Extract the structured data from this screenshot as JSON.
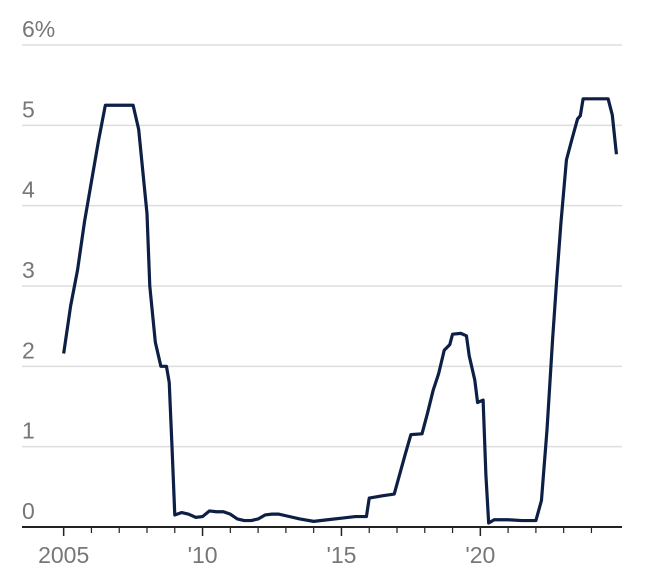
{
  "chart_data": {
    "type": "line",
    "x": [
      2005.0,
      2005.25,
      2005.5,
      2005.75,
      2006.0,
      2006.25,
      2006.5,
      2006.75,
      2007.0,
      2007.5,
      2007.7,
      2008.0,
      2008.1,
      2008.3,
      2008.5,
      2008.7,
      2008.8,
      2008.9,
      2009.0,
      2009.25,
      2009.5,
      2009.75,
      2010.0,
      2010.25,
      2010.5,
      2010.75,
      2011.0,
      2011.25,
      2011.5,
      2011.75,
      2012.0,
      2012.25,
      2012.5,
      2012.75,
      2013.0,
      2013.5,
      2014.0,
      2014.5,
      2015.0,
      2015.5,
      2015.9,
      2016.0,
      2016.5,
      2016.9,
      2017.1,
      2017.3,
      2017.5,
      2017.9,
      2018.1,
      2018.3,
      2018.5,
      2018.7,
      2018.9,
      2019.0,
      2019.3,
      2019.5,
      2019.6,
      2019.8,
      2019.9,
      2020.1,
      2020.2,
      2020.3,
      2020.5,
      2021.0,
      2021.5,
      2022.0,
      2022.2,
      2022.4,
      2022.6,
      2022.75,
      2022.9,
      2023.1,
      2023.3,
      2023.5,
      2023.6,
      2023.7,
      2024.0,
      2024.6,
      2024.75,
      2024.9
    ],
    "series": [
      {
        "color": "#0d1f45",
        "values": [
          2.16,
          2.75,
          3.2,
          3.8,
          4.3,
          4.8,
          5.25,
          5.25,
          5.25,
          5.25,
          4.95,
          3.9,
          3.0,
          2.3,
          2.0,
          2.0,
          1.8,
          1.0,
          0.15,
          0.18,
          0.16,
          0.12,
          0.13,
          0.2,
          0.19,
          0.19,
          0.16,
          0.1,
          0.08,
          0.08,
          0.1,
          0.15,
          0.16,
          0.16,
          0.14,
          0.1,
          0.07,
          0.09,
          0.11,
          0.13,
          0.13,
          0.36,
          0.39,
          0.41,
          0.66,
          0.91,
          1.15,
          1.16,
          1.42,
          1.7,
          1.91,
          2.2,
          2.27,
          2.4,
          2.41,
          2.38,
          2.13,
          1.83,
          1.55,
          1.58,
          0.65,
          0.05,
          0.09,
          0.09,
          0.08,
          0.08,
          0.33,
          1.21,
          2.33,
          3.08,
          3.78,
          4.57,
          4.83,
          5.08,
          5.12,
          5.33,
          5.33,
          5.33,
          5.13,
          4.64
        ]
      }
    ],
    "xlim": [
      2003.5,
      2025.1
    ],
    "xticks": [
      2005,
      {
        "value": 2010,
        "label": "'10"
      },
      {
        "value": 2015,
        "label": "'15"
      },
      {
        "value": 2020,
        "label": "'20"
      }
    ],
    "xminor_ticks": [
      2006,
      2007,
      2008,
      2009,
      2011,
      2012,
      2013,
      2014,
      2016,
      2017,
      2018,
      2019,
      2021,
      2022,
      2023,
      2024
    ],
    "ylim": [
      0,
      6
    ],
    "yticks": [
      0,
      1,
      2,
      3,
      4,
      5,
      {
        "value": 6,
        "label": "6%"
      }
    ],
    "grid": true
  }
}
